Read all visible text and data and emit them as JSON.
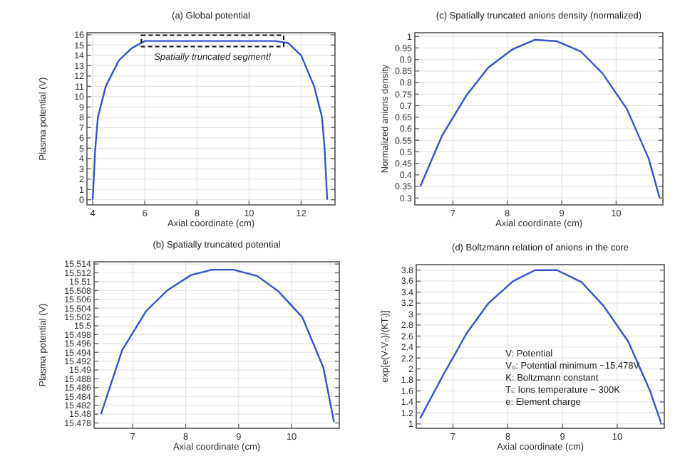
{
  "chart_data": [
    {
      "type": "line",
      "title": "(a) Global potential",
      "xlabel": "Axial coordinate (cm)",
      "ylabel": "Plasma potential (V)",
      "x": [
        4,
        4.1,
        4.2,
        4.5,
        5,
        5.5,
        6,
        11,
        11.5,
        12,
        12.5,
        12.8,
        12.9,
        13
      ],
      "series": [
        {
          "color": "#3355cc",
          "values": [
            0,
            5,
            8,
            11,
            13.5,
            14.7,
            15.4,
            15.4,
            15.2,
            14,
            11,
            8,
            5,
            0
          ]
        }
      ],
      "xlim": [
        3.78,
        13.3
      ],
      "xticks": [
        4,
        6,
        8,
        10,
        12
      ],
      "ylim": [
        -0.5,
        16.2
      ],
      "yticks": [
        0,
        1,
        2,
        3,
        4,
        5,
        6,
        7,
        8,
        9,
        10,
        11,
        12,
        13,
        14,
        15,
        16
      ],
      "grid": true,
      "line_style": "solid",
      "annotations": [
        {
          "text": "Spatially truncated segment!",
          "x": 8.6,
          "y": 15.4
        }
      ]
    },
    {
      "type": "line",
      "title": "(c) Spatially truncated anions density (normalized)",
      "xlabel": "Axial coordinate (cm)",
      "ylabel": "Normalized anions density",
      "x": [
        6.4,
        6.8,
        7.25,
        7.65,
        8.1,
        8.5,
        8.9,
        9.35,
        9.75,
        10.2,
        10.6,
        10.8
      ],
      "series": [
        {
          "color": "#3355cc",
          "values": [
            0.35,
            0.57,
            0.745,
            0.865,
            0.945,
            0.985,
            0.98,
            0.935,
            0.84,
            0.685,
            0.47,
            0.3
          ]
        }
      ],
      "xlim": [
        6.3,
        10.86
      ],
      "xticks": [
        7,
        8,
        9,
        10
      ],
      "ylim": [
        0.27,
        1.016
      ],
      "yticks": [
        0.3,
        0.35,
        0.4,
        0.45,
        0.5,
        0.55,
        0.6,
        0.65,
        0.7,
        0.75,
        0.8,
        0.85,
        0.9,
        0.95,
        1
      ],
      "grid": true,
      "line_style": "solid"
    },
    {
      "type": "line",
      "title": "(b) Spatially truncated potential",
      "xlabel": "Axial coordinate (cm)",
      "ylabel": "Plasma potential (V)",
      "x": [
        6.4,
        6.8,
        7.25,
        7.65,
        8.1,
        8.5,
        8.9,
        9.35,
        9.75,
        10.2,
        10.6,
        10.8
      ],
      "series": [
        {
          "color": "#3355cc",
          "values": [
            15.48,
            15.4945,
            15.5033,
            15.508,
            15.5115,
            15.5127,
            15.5127,
            15.5113,
            15.5078,
            15.502,
            15.4905,
            15.4782
          ]
        }
      ],
      "xlim": [
        6.27,
        10.9
      ],
      "xticks": [
        7,
        8,
        9,
        10
      ],
      "ylim": [
        15.4768,
        15.5145
      ],
      "yticks": [
        15.478,
        15.48,
        15.482,
        15.484,
        15.486,
        15.488,
        15.49,
        15.492,
        15.494,
        15.496,
        15.498,
        15.5,
        15.502,
        15.504,
        15.506,
        15.508,
        15.51,
        15.512,
        15.514
      ],
      "grid": true,
      "line_style": "solid"
    },
    {
      "type": "line",
      "title": "(d) Boltzmann relation of anions in the core",
      "xlabel": "Axial coordinate (cm)",
      "ylabel": "exp[e(V-V₀)/(KTᵢ)]",
      "x": [
        6.4,
        6.8,
        7.25,
        7.65,
        8.1,
        8.5,
        8.9,
        9.35,
        9.75,
        10.2,
        10.6,
        10.8
      ],
      "series": [
        {
          "color": "#3355cc",
          "values": [
            1.1,
            1.85,
            2.65,
            3.2,
            3.6,
            3.8,
            3.8,
            3.58,
            3.15,
            2.5,
            1.6,
            1.02
          ]
        }
      ],
      "xlim": [
        6.33,
        10.86
      ],
      "xticks": [
        7,
        8,
        9,
        10
      ],
      "ylim": [
        0.92,
        3.9
      ],
      "yticks": [
        1,
        1.2,
        1.4,
        1.6,
        1.8,
        2,
        2.2,
        2.4,
        2.6,
        2.8,
        3,
        3.2,
        3.4,
        3.6,
        3.8
      ],
      "grid": true,
      "line_style": "solid",
      "annotations": [
        "V: Potential",
        "V₀: Potential minimum ~15.478V",
        "K: Boltzmann constant",
        "Tᵢ: Ions temperature ~ 300K",
        "e: Element charge"
      ]
    }
  ]
}
